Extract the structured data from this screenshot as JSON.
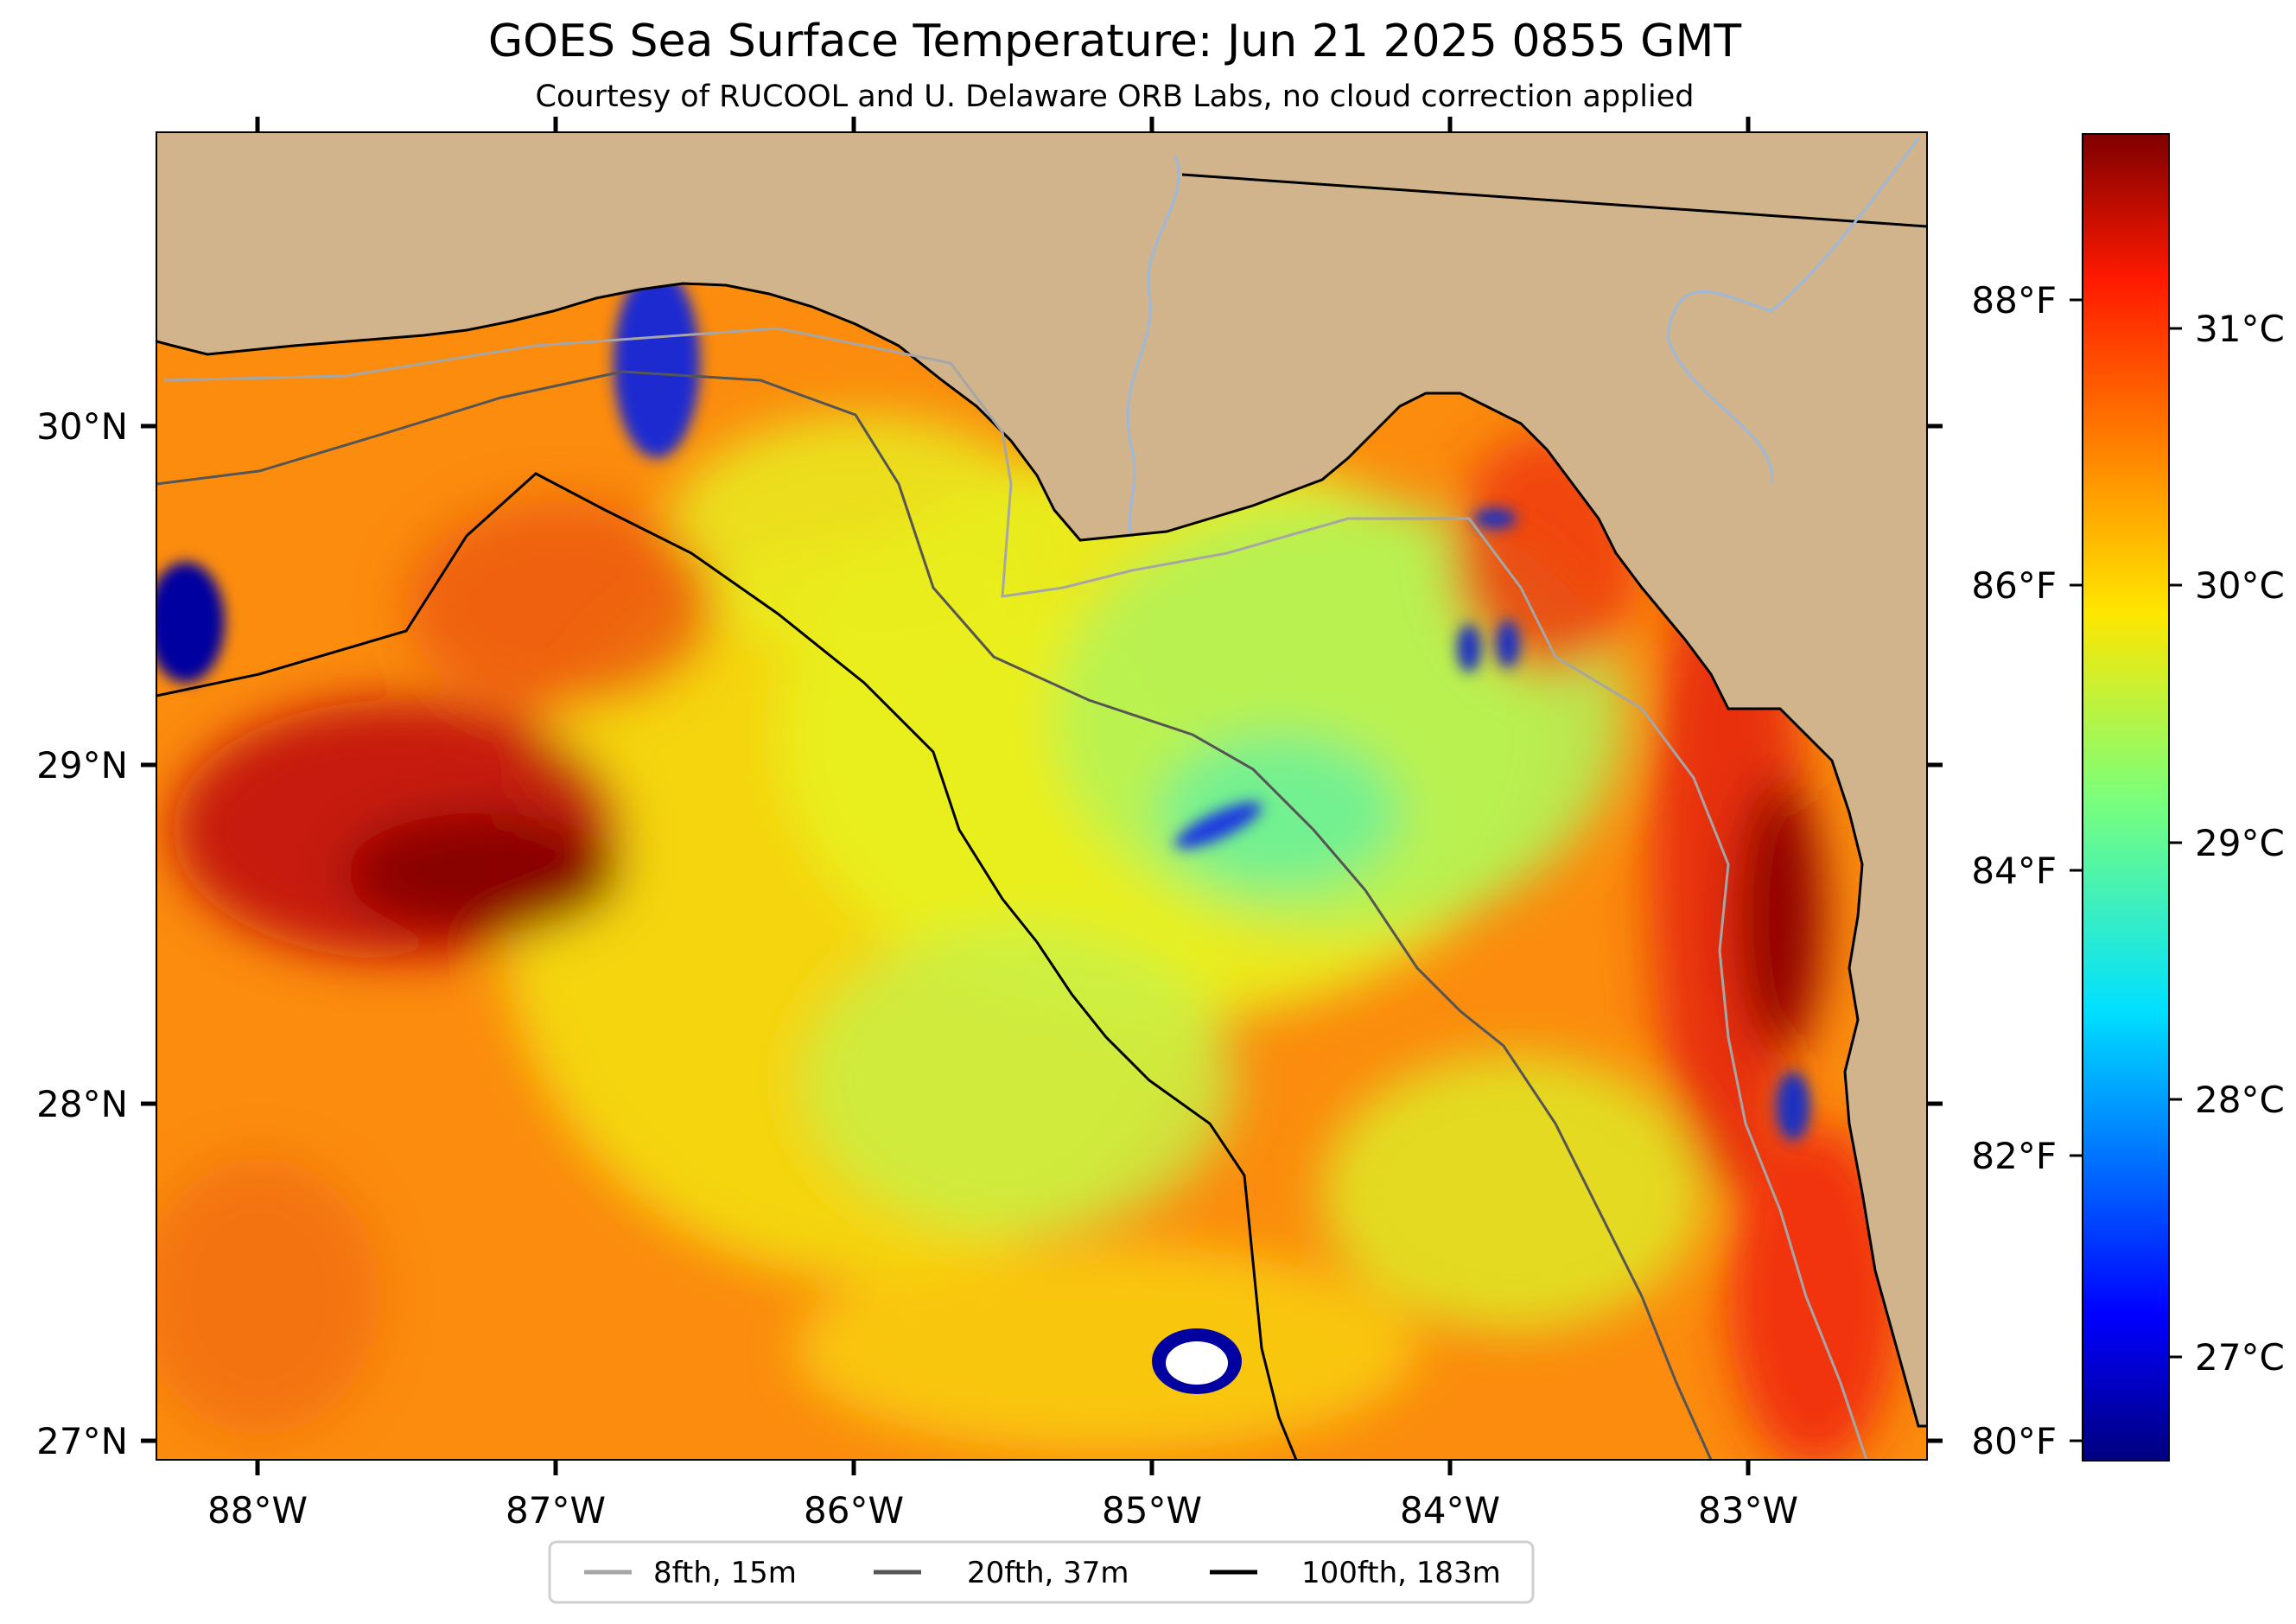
{
  "title": "GOES Sea Surface Temperature: Jun 21 2025 0855 GMT",
  "subtitle": "Courtesy of RUCOOL and U. Delaware ORB Labs, no cloud correction applied",
  "map": {
    "lon_range": [
      -88.33,
      -82.38
    ],
    "lat_range": [
      26.93,
      30.83
    ],
    "lon_ticks": [
      "88°W",
      "87°W",
      "86°W",
      "85°W",
      "84°W",
      "83°W"
    ],
    "lat_ticks": [
      "30°N",
      "29°N",
      "28°N",
      "27°N"
    ],
    "land_color": "#d2b48c"
  },
  "colorbar": {
    "colormap": "jet",
    "celsius_ticks": [
      "31°C",
      "30°C",
      "29°C",
      "28°C",
      "27°C"
    ],
    "fahrenheit_ticks": [
      "88°F",
      "86°F",
      "84°F",
      "82°F",
      "80°F"
    ]
  },
  "legend": {
    "items": [
      {
        "label": "8fth, 15m",
        "color": "#a6a6a6"
      },
      {
        "label": "20fth, 37m",
        "color": "#555555"
      },
      {
        "label": "100fth, 183m",
        "color": "#000000"
      }
    ]
  }
}
